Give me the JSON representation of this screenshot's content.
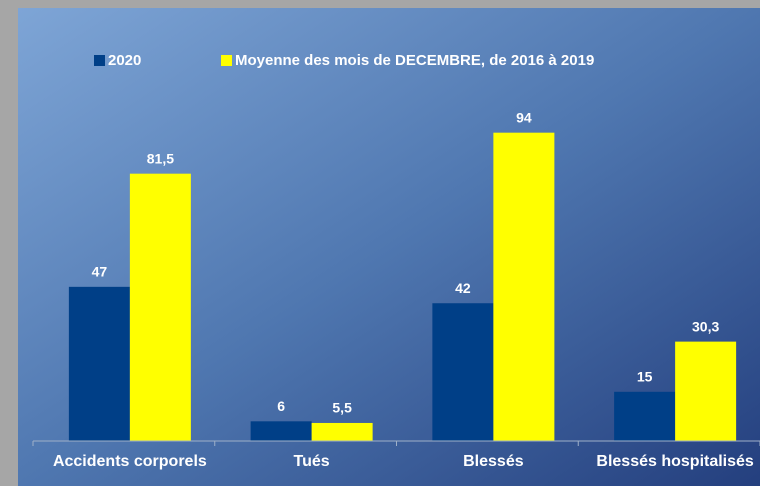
{
  "chart_data": {
    "type": "bar",
    "categories": [
      "Accidents corporels",
      "Tués",
      "Blessés",
      "Blessés hospitalisés"
    ],
    "series": [
      {
        "name": "2020",
        "color": "#003f87",
        "values": [
          47,
          6,
          42,
          15
        ]
      },
      {
        "name": "Moyenne des mois de DECEMBRE, de 2016 à 2019",
        "color": "#ffff00",
        "values": [
          81.5,
          5.5,
          94,
          30.3
        ],
        "value_labels": [
          "81,5",
          "5,5",
          "94",
          "30,3"
        ]
      }
    ],
    "ylim": [
      0,
      100
    ]
  }
}
